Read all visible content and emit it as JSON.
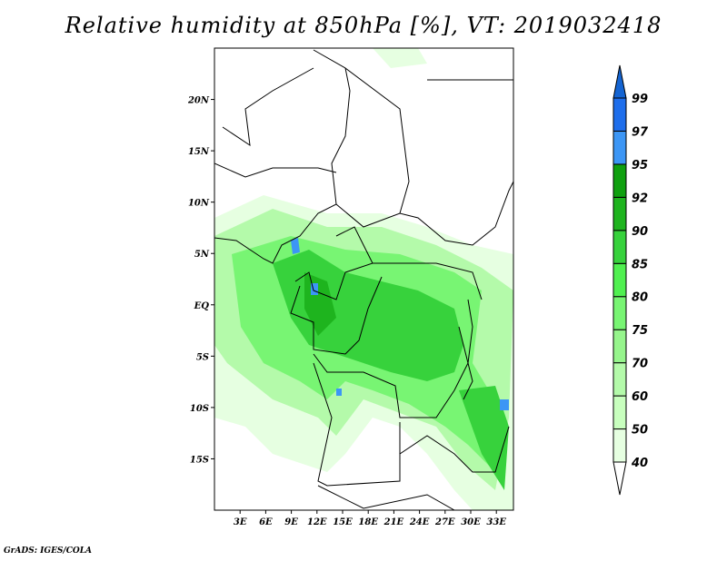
{
  "title": "Relative humidity at 850hPa [%], VT: 2019032418",
  "credit": "GrADS: IGES/COLA",
  "map": {
    "lon_range": [
      0,
      35
    ],
    "lat_range": [
      -20,
      25
    ],
    "lat_ticks": [
      {
        "value": 20,
        "label": "20N"
      },
      {
        "value": 15,
        "label": "15N"
      },
      {
        "value": 10,
        "label": "10N"
      },
      {
        "value": 5,
        "label": "5N"
      },
      {
        "value": 0,
        "label": "EQ"
      },
      {
        "value": -5,
        "label": "5S"
      },
      {
        "value": -10,
        "label": "10S"
      },
      {
        "value": -15,
        "label": "15S"
      }
    ],
    "lon_ticks": [
      {
        "value": 3,
        "label": "3E"
      },
      {
        "value": 6,
        "label": "6E"
      },
      {
        "value": 9,
        "label": "9E"
      },
      {
        "value": 12,
        "label": "12E"
      },
      {
        "value": 15,
        "label": "15E"
      },
      {
        "value": 18,
        "label": "18E"
      },
      {
        "value": 21,
        "label": "21E"
      },
      {
        "value": 24,
        "label": "24E"
      },
      {
        "value": 27,
        "label": "27E"
      },
      {
        "value": 30,
        "label": "30E"
      },
      {
        "value": 33,
        "label": "33E"
      }
    ]
  },
  "colorbar": {
    "levels": [
      "40",
      "50",
      "60",
      "70",
      "75",
      "80",
      "85",
      "90",
      "92",
      "95",
      "97",
      "99"
    ],
    "colors": [
      "#e6ffe1",
      "#c8ffbe",
      "#b4faaa",
      "#96f58c",
      "#78f573",
      "#50f050",
      "#37d23c",
      "#1eb41e",
      "#0fa00f",
      "#3c96f5",
      "#1e6eeb"
    ],
    "over_color": "#1464d2",
    "under_color": "#ffffff"
  }
}
